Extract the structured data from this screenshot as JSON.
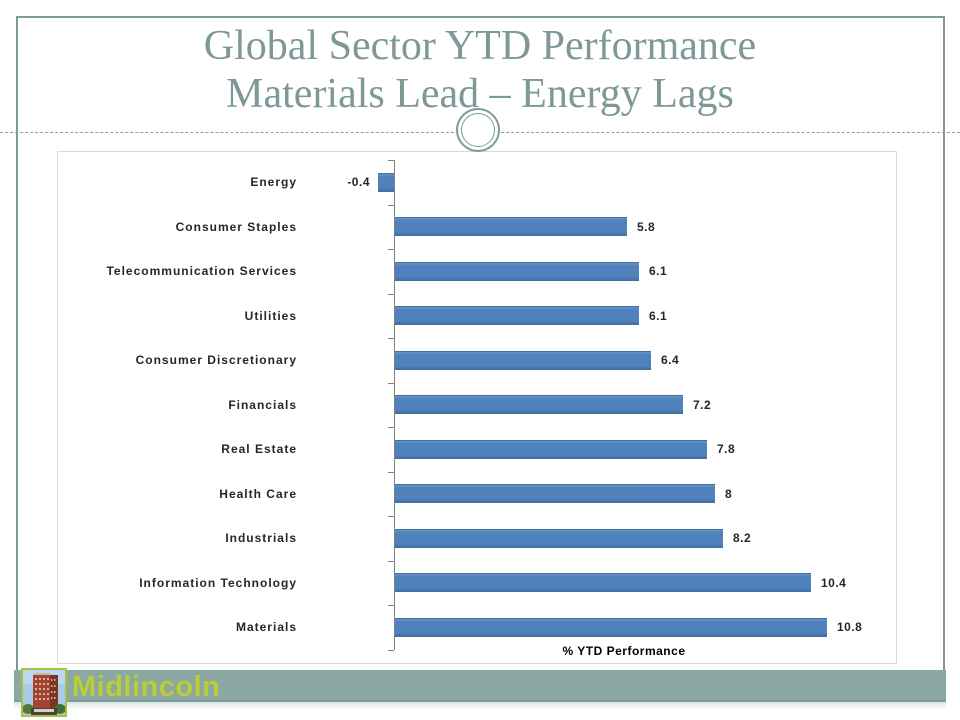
{
  "slide": {
    "title_line1": "Global Sector YTD Performance",
    "title_line2": "Materials Lead – Energy Lags"
  },
  "footer": {
    "brand": "Midlincoln"
  },
  "icons": {
    "logo": "building-photo-logo",
    "ornament": "double-circle-ornament"
  },
  "colors": {
    "bar": "#4f81bd",
    "accent_teal": "#7e9a98",
    "title_text": "#7c9897",
    "footer_strip": "#8ca8a5",
    "brand_text": "#b9cd3f",
    "axis_gray": "#808080",
    "chart_border": "#d9d9d9"
  },
  "chart_data": {
    "type": "bar",
    "orientation": "horizontal",
    "title": "",
    "xlabel": "% YTD Performance",
    "ylabel": "",
    "xlim": [
      -0.5,
      12
    ],
    "grid": false,
    "legend": false,
    "categories": [
      "Energy",
      "Consumer Staples",
      "Telecommunication Services",
      "Utilities",
      "Consumer Discretionary",
      "Financials",
      "Real Estate",
      "Health Care",
      "Industrials",
      "Information Technology",
      "Materials"
    ],
    "values": [
      -0.4,
      5.8,
      6.1,
      6.1,
      6.4,
      7.2,
      7.8,
      8,
      8.2,
      10.4,
      10.8
    ],
    "value_labels": [
      "-0.4",
      "5.8",
      "6.1",
      "6.1",
      "6.4",
      "7.2",
      "7.8",
      "8",
      "8.2",
      "10.4",
      "10.8"
    ]
  }
}
